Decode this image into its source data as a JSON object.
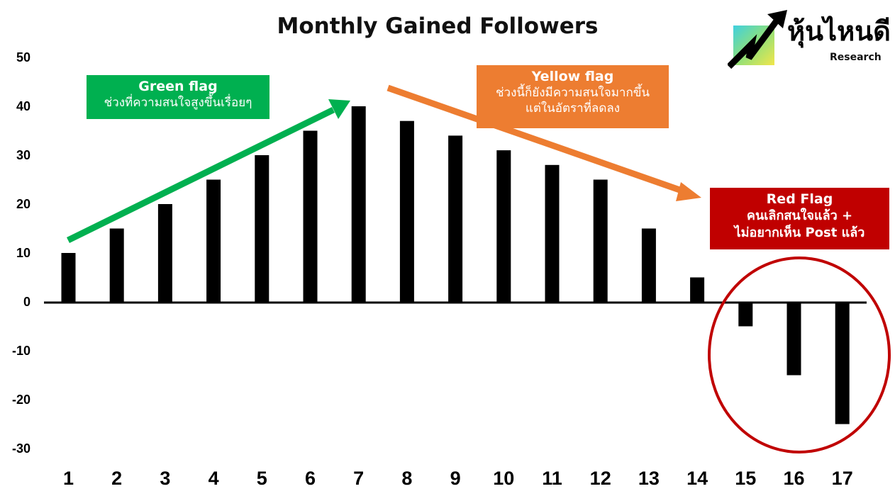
{
  "chart_data": {
    "type": "bar",
    "title": "Monthly Gained Followers",
    "categories": [
      "1",
      "2",
      "3",
      "4",
      "5",
      "6",
      "7",
      "8",
      "9",
      "10",
      "11",
      "12",
      "13",
      "14",
      "15",
      "16",
      "17"
    ],
    "values": [
      10,
      15,
      20,
      25,
      30,
      35,
      40,
      37,
      34,
      31,
      28,
      25,
      15,
      5,
      -5,
      -15,
      -25
    ],
    "ylim": [
      -30,
      50
    ],
    "yticks": [
      "50",
      "40",
      "30",
      "20",
      "10",
      "0",
      "-10",
      "-20",
      "-30"
    ],
    "bar_color": "#000000",
    "grid": false,
    "annotations": {
      "green": {
        "head": "Green flag",
        "body": "ช่วงที่ความสนใจสูงขึ้นเรื่อยๆ",
        "color": "#00b050"
      },
      "yellow": {
        "head": "Yellow flag",
        "body1": "ช่วงนี้ก็ยังมีความสนใจมากขึ้น",
        "body2": "แต่ในอัตราที่ลดลง",
        "color": "#ed7d31"
      },
      "red": {
        "head": "Red Flag",
        "body1": "คนเลิกสนใจแล้ว +",
        "body2": "ไม่อยากเห็น Post แล้ว",
        "color": "#c00000"
      }
    }
  },
  "logo": {
    "brand": "หุ้นไหนดี",
    "sub": "Research"
  }
}
